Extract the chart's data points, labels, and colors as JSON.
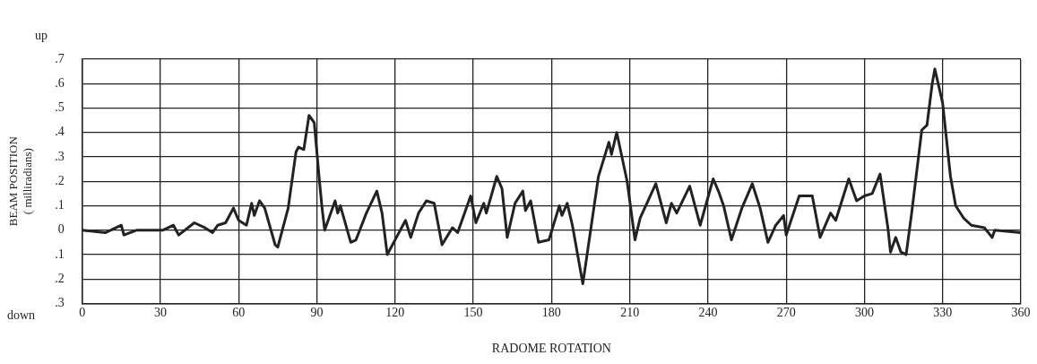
{
  "chart_data": {
    "type": "line",
    "xlabel": "RADOME ROTATION",
    "ylabel": "BEAM POSITION\n( milliradians)",
    "annotations": [
      "up",
      "down"
    ],
    "xlim": [
      0,
      360
    ],
    "xticks": [
      0,
      30,
      60,
      90,
      120,
      150,
      180,
      210,
      240,
      270,
      300,
      330,
      360
    ],
    "ylim": [
      -0.3,
      0.7
    ],
    "yticks": [
      {
        "value": 0.7,
        "label": ".7"
      },
      {
        "value": 0.6,
        "label": ".6"
      },
      {
        "value": 0.5,
        "label": ".5"
      },
      {
        "value": 0.4,
        "label": ".4"
      },
      {
        "value": 0.3,
        "label": ".3"
      },
      {
        "value": 0.2,
        "label": ".2"
      },
      {
        "value": 0.1,
        "label": ".1"
      },
      0,
      {
        "value": -0.1,
        "label": ".1"
      },
      {
        "value": -0.2,
        "label": ".2"
      },
      {
        "value": -0.3,
        "label": ".3"
      }
    ],
    "grid": true,
    "legend": false,
    "marker": "none",
    "line_style": "solid",
    "series": [
      {
        "color": "#222222",
        "x": [
          0,
          9,
          15,
          16,
          21,
          31,
          35,
          37,
          43,
          47,
          50,
          52,
          55,
          58,
          60,
          63,
          65,
          66,
          68,
          70,
          74,
          75,
          79,
          82,
          83,
          85,
          86,
          87,
          89,
          91,
          92,
          93,
          97,
          98,
          99,
          103,
          105,
          109,
          113,
          115,
          117,
          121,
          124,
          126,
          129,
          132,
          135,
          138,
          142,
          144,
          149,
          151,
          154,
          155,
          159,
          161,
          163,
          166,
          169,
          170,
          172,
          175,
          179,
          183,
          184,
          186,
          188,
          192,
          198,
          202,
          203,
          205,
          209,
          212,
          214,
          220,
          224,
          226,
          228,
          233,
          237,
          242,
          244,
          246,
          249,
          253,
          255,
          257,
          260,
          263,
          266,
          269,
          270,
          275,
          280,
          283,
          287,
          289,
          294,
          297,
          300,
          303,
          306,
          309,
          310,
          312,
          314,
          316,
          318,
          322,
          324,
          326,
          327,
          330,
          333,
          335,
          338,
          341,
          346,
          349,
          350,
          360
        ],
        "values": [
          0,
          -0.01,
          0.02,
          -0.02,
          0,
          0,
          0.02,
          -0.02,
          0.03,
          0.01,
          -0.01,
          0.02,
          0.03,
          0.09,
          0.04,
          0.02,
          0.11,
          0.06,
          0.12,
          0.09,
          -0.06,
          -0.07,
          0.09,
          0.32,
          0.34,
          0.33,
          0.4,
          0.47,
          0.44,
          0.2,
          0.09,
          0,
          0.12,
          0.07,
          0.1,
          -0.05,
          -0.04,
          0.07,
          0.16,
          0.07,
          -0.1,
          -0.02,
          0.04,
          -0.03,
          0.07,
          0.12,
          0.11,
          -0.06,
          0.01,
          -0.01,
          0.14,
          0.03,
          0.11,
          0.07,
          0.22,
          0.17,
          -0.03,
          0.11,
          0.16,
          0.08,
          0.12,
          -0.05,
          -0.04,
          0.1,
          0.06,
          0.11,
          0.02,
          -0.22,
          0.22,
          0.36,
          0.31,
          0.4,
          0.2,
          -0.04,
          0.05,
          0.19,
          0.03,
          0.11,
          0.07,
          0.18,
          0.02,
          0.21,
          0.16,
          0.1,
          -0.04,
          0.09,
          0.14,
          0.19,
          0.09,
          -0.05,
          0.02,
          0.06,
          -0.02,
          0.14,
          0.14,
          -0.03,
          0.07,
          0.04,
          0.21,
          0.12,
          0.14,
          0.15,
          0.23,
          0.01,
          -0.09,
          -0.03,
          -0.09,
          -0.1,
          0.06,
          0.41,
          0.43,
          0.6,
          0.66,
          0.52,
          0.22,
          0.1,
          0.05,
          0.02,
          0.01,
          -0.03,
          0,
          -0.01
        ]
      }
    ]
  }
}
